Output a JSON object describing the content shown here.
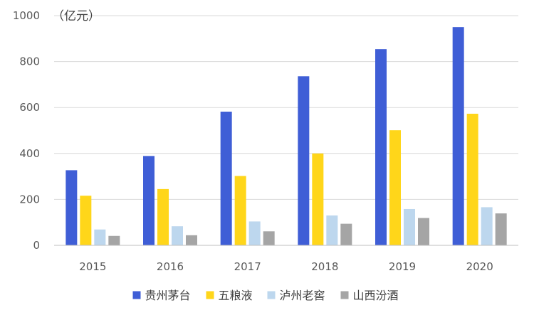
{
  "chart_data": {
    "type": "bar",
    "title": "",
    "unit_label": "（亿元）",
    "xlabel": "",
    "ylabel": "",
    "categories": [
      "2015",
      "2016",
      "2017",
      "2018",
      "2019",
      "2020"
    ],
    "ylim": [
      0,
      1000
    ],
    "yticks": [
      0,
      200,
      400,
      600,
      800,
      1000
    ],
    "grid": true,
    "legend": "bottom",
    "series": [
      {
        "name": "贵州茅台",
        "color": "#3F5ED6",
        "values": [
          327,
          389,
          582,
          736,
          854,
          950
        ]
      },
      {
        "name": "五粮液",
        "color": "#FFD61A",
        "values": [
          216,
          245,
          302,
          400,
          501,
          573
        ]
      },
      {
        "name": "泸州老窖",
        "color": "#BDD7EE",
        "values": [
          69,
          83,
          104,
          130,
          158,
          166
        ]
      },
      {
        "name": "山西汾酒",
        "color": "#A5A5A5",
        "values": [
          41,
          44,
          61,
          94,
          119,
          139
        ]
      }
    ]
  }
}
